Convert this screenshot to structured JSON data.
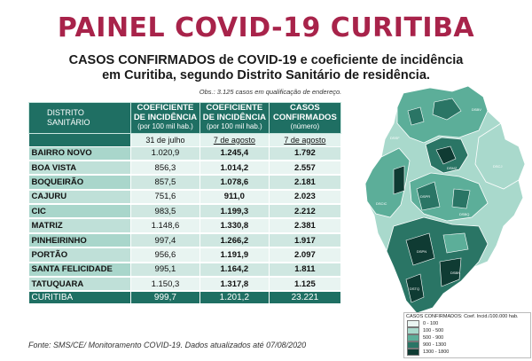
{
  "title": "PAINEL COVID-19 CURITIBA",
  "subtitle_line1": "CASOS CONFIRMADOS de COVID-19 e coeficiente de incidência",
  "subtitle_line2": "em Curitiba, segundo Distrito Sanitário de residência.",
  "obs": "Obs.: 3.125 casos em qualificação de endereço.",
  "table": {
    "headers": {
      "distrito": "DISTRITO SANITÁRIO",
      "coef_a": "COEFICIENTE DE INCIDÊNCIA",
      "coef_a_sub": "(por 100 mil hab.)",
      "coef_b": "COEFICIENTE DE INCIDÊNCIA",
      "coef_b_sub": "(por 100 mil hab.)",
      "casos": "CASOS CONFIRMADOS",
      "casos_sub": "(número)"
    },
    "dates": {
      "coef_a": "31 de julho",
      "coef_b": "7 de agosto",
      "casos": "7 de agosto"
    },
    "rows": [
      {
        "name": "BAIRRO NOVO",
        "coef_julho": "1.020,9",
        "coef_agosto": "1.245,4",
        "casos": "1.792"
      },
      {
        "name": "BOA VISTA",
        "coef_julho": "856,3",
        "coef_agosto": "1.014,2",
        "casos": "2.557"
      },
      {
        "name": "BOQUEIRÃO",
        "coef_julho": "857,5",
        "coef_agosto": "1.078,6",
        "casos": "2.181"
      },
      {
        "name": "CAJURU",
        "coef_julho": "751,6",
        "coef_agosto": "911,0",
        "casos": "2.023"
      },
      {
        "name": "CIC",
        "coef_julho": "983,5",
        "coef_agosto": "1.199,3",
        "casos": "2.212"
      },
      {
        "name": "MATRIZ",
        "coef_julho": "1.148,6",
        "coef_agosto": "1.330,8",
        "casos": "2.381"
      },
      {
        "name": "PINHEIRINHO",
        "coef_julho": "997,4",
        "coef_agosto": "1.266,2",
        "casos": "1.917"
      },
      {
        "name": "PORTÃO",
        "coef_julho": "956,6",
        "coef_agosto": "1.191,9",
        "casos": "2.097"
      },
      {
        "name": "SANTA FELICIDADE",
        "coef_julho": "995,1",
        "coef_agosto": "1.164,2",
        "casos": "1.811"
      },
      {
        "name": "TATUQUARA",
        "coef_julho": "1.150,3",
        "coef_agosto": "1.317,8",
        "casos": "1.125"
      }
    ],
    "total": {
      "name": "CURITIBA",
      "coef_julho": "999,7",
      "coef_agosto": "1.201,2",
      "casos": "23.221"
    }
  },
  "source": "Fonte: SMS/CE/ Monitoramento COVID-19. Dados  atualizados até 07/08/2020",
  "map": {
    "district_labels": [
      "DSBV",
      "DSSF",
      "DSMZ",
      "DSCJ",
      "DSPR",
      "DSCIC",
      "DSBQ",
      "DSPN",
      "DSBN",
      "DSTQ"
    ],
    "colors": {
      "c1": "#eaf5f2",
      "c2": "#a9d9cc",
      "c3": "#5cae99",
      "c4": "#2a7565",
      "c5": "#0f3b33"
    }
  },
  "legend": {
    "title": "CASOS CONFIRMADOS: Coef. Incid./100.000 hab.",
    "items": [
      {
        "label": "0 - 100",
        "color": "#eaf5f2"
      },
      {
        "label": "100 - 500",
        "color": "#a9d9cc"
      },
      {
        "label": "500 - 900",
        "color": "#5cae99"
      },
      {
        "label": "900 - 1300",
        "color": "#2a7565"
      },
      {
        "label": "1300 - 1800",
        "color": "#0f3b33"
      }
    ]
  }
}
